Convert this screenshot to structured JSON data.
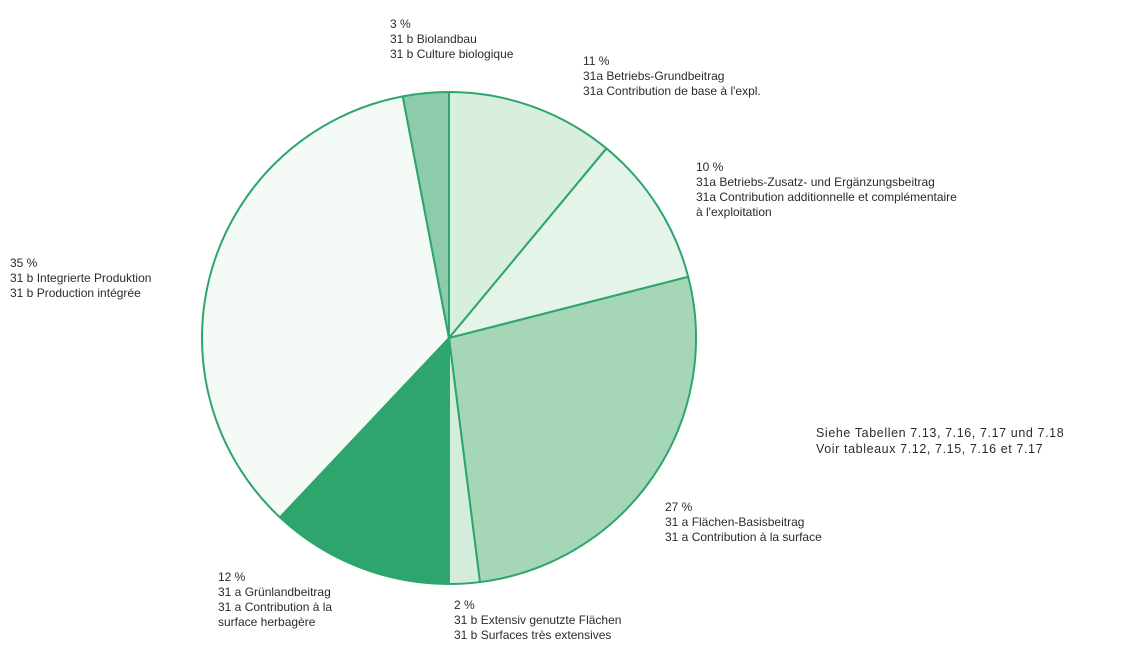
{
  "chart_data": {
    "type": "pie",
    "colors": {
      "stroke": "#2ea56d",
      "slice_colors": [
        "#d8eedf",
        "#e4f4e9",
        "#a5d7b7",
        "#d4ecdc",
        "#2ea56d",
        "#f4fbf6",
        "#8ccbab"
      ]
    },
    "slices": [
      {
        "value": 11,
        "percent_label": "11 %",
        "label_de": "31a Betriebs-Grundbeitrag",
        "label_fr": "31a Contribution de base à l'expl."
      },
      {
        "value": 10,
        "percent_label": "10 %",
        "label_de": "31a  Betriebs-Zusatz- und Ergänzungsbeitrag",
        "label_fr": "31a  Contribution additionnelle et complémentaire",
        "label_fr_2": "à l'exploitation"
      },
      {
        "value": 27,
        "percent_label": "27 %",
        "label_de": "31 a Flächen-Basisbeitrag",
        "label_fr": "31 a Contribution à la surface"
      },
      {
        "value": 2,
        "percent_label": "2 %",
        "label_de": "31 b Extensiv genutzte Flächen",
        "label_fr": "31 b Surfaces très extensives"
      },
      {
        "value": 12,
        "percent_label": "12 %",
        "label_de": "31 a Grünlandbeitrag",
        "label_fr": "31 a Contribution à la",
        "label_fr_2": "surface herbagère"
      },
      {
        "value": 35,
        "percent_label": "35 %",
        "label_de": "31 b Integrierte Produktion",
        "label_fr": "31 b Production intégrée"
      },
      {
        "value": 3,
        "percent_label": "3 %",
        "label_de": "31 b Biolandbau",
        "label_fr": "31 b Culture biologique"
      }
    ],
    "note": {
      "line1": "Siehe Tabellen 7.13, 7.16, 7.17 und 7.18",
      "line2": "Voir tableaux 7.12, 7.15, 7.16 et 7.17"
    }
  }
}
